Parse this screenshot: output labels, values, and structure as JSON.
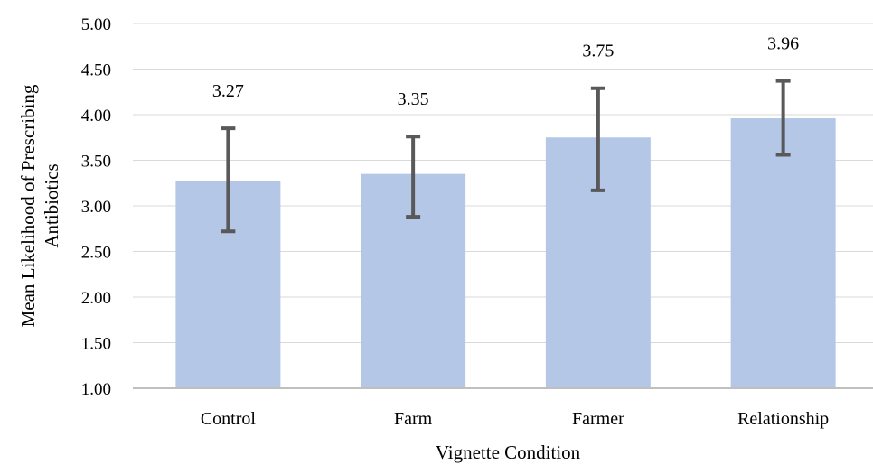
{
  "chart_data": {
    "type": "bar",
    "categories": [
      "Control",
      "Farm",
      "Farmer",
      "Relationship"
    ],
    "values": [
      3.27,
      3.35,
      3.75,
      3.96
    ],
    "data_labels": [
      "3.27",
      "3.35",
      "3.75",
      "3.96"
    ],
    "error_bars": [
      {
        "low": 2.72,
        "high": 3.85
      },
      {
        "low": 2.88,
        "high": 3.76
      },
      {
        "low": 3.17,
        "high": 4.29
      },
      {
        "low": 3.56,
        "high": 4.37
      }
    ],
    "title": "",
    "xlabel": "Vignette Condition",
    "ylabel_lines": [
      "Mean Likelihood of Prescribing",
      "Antibiotics"
    ],
    "ylim": [
      1.0,
      5.0
    ],
    "yticks": [
      "1.00",
      "1.50",
      "2.00",
      "2.50",
      "3.00",
      "3.50",
      "4.00",
      "4.50",
      "5.00"
    ],
    "grid": true,
    "legend": "none",
    "colors": {
      "bar": "#b4c7e7",
      "error_bar": "#595959",
      "grid": "#d9d9d9",
      "axis": "#bfbfbf"
    }
  }
}
